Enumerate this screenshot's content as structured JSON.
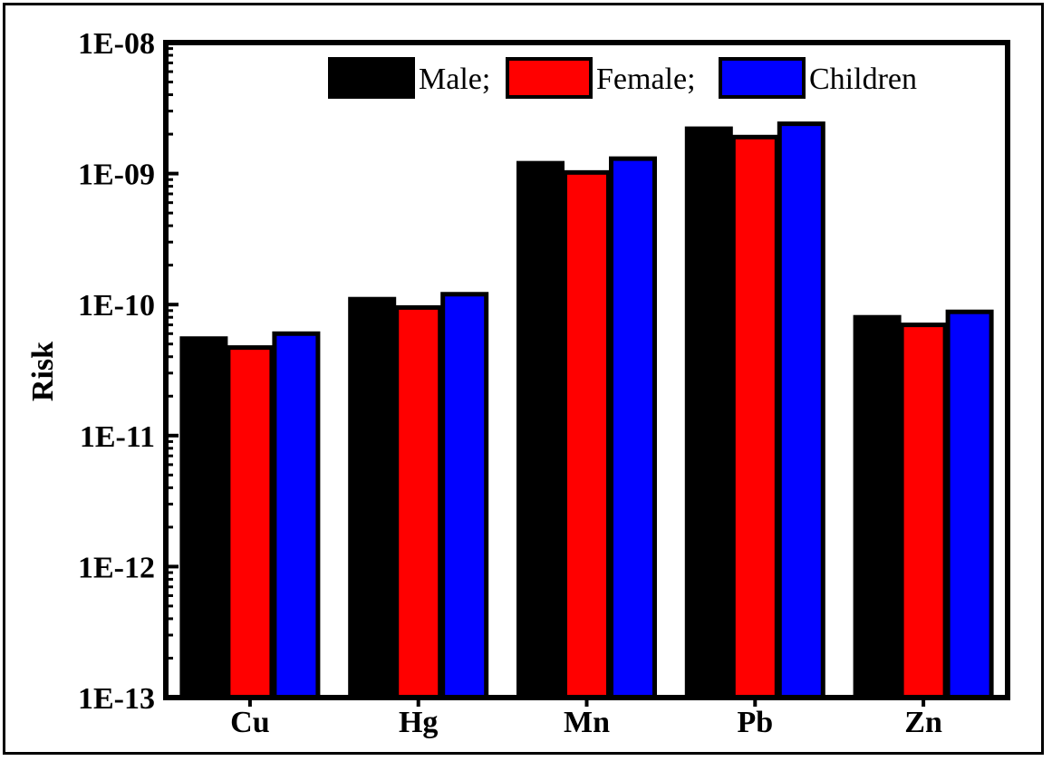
{
  "chart_data": {
    "type": "bar",
    "title": "",
    "xlabel": "",
    "ylabel": "Risk",
    "yscale": "log",
    "ylim": [
      1e-13,
      1e-08
    ],
    "ytick_values": [
      1e-08,
      1e-09,
      1e-10,
      1e-11,
      1e-12,
      1e-13
    ],
    "ytick_labels": [
      "1E-08",
      "1E-09",
      "1E-10",
      "1E-11",
      "1E-12",
      "1E-13"
    ],
    "categories": [
      "Cu",
      "Hg",
      "Mn",
      "Pb",
      "Zn"
    ],
    "series": [
      {
        "name": "Male;",
        "color": "#000000",
        "values": [
          5.5e-11,
          1.1e-10,
          1.2e-09,
          2.2e-09,
          8e-11
        ]
      },
      {
        "name": "Female;",
        "color": "#ff0000",
        "values": [
          4.7e-11,
          9.5e-11,
          1.02e-09,
          1.9e-09,
          7e-11
        ]
      },
      {
        "name": "Children",
        "color": "#0000ff",
        "values": [
          6e-11,
          1.2e-10,
          1.3e-09,
          2.4e-09,
          8.8e-11
        ]
      }
    ],
    "legend_position": "top-right",
    "grid": false
  }
}
